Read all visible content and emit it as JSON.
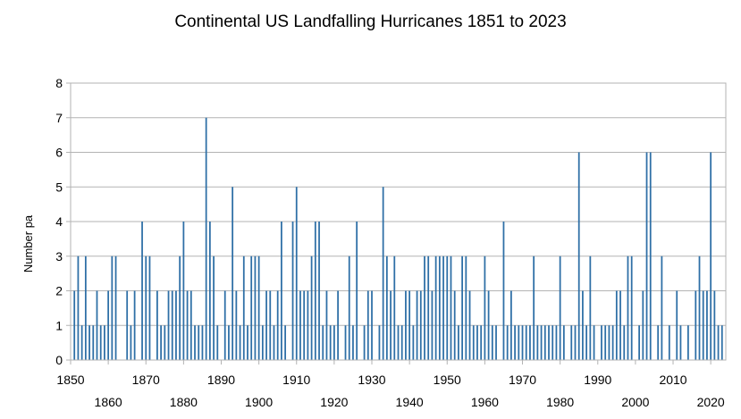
{
  "chart_data": {
    "type": "bar",
    "title": "Continental US Landfalling Hurricanes 1851 to 2023",
    "xlabel": "",
    "ylabel": "Number pa",
    "xlim": [
      1850,
      2024
    ],
    "ylim": [
      0,
      8
    ],
    "y_ticks": [
      "0",
      "1",
      "2",
      "3",
      "4",
      "5",
      "6",
      "7",
      "8"
    ],
    "x_ticks_upper": [
      "1850",
      "1870",
      "1890",
      "1910",
      "1930",
      "1950",
      "1970",
      "1990",
      "2010"
    ],
    "x_ticks_lower": [
      "1860",
      "1880",
      "1900",
      "1920",
      "1940",
      "1960",
      "1980",
      "2000",
      "2020"
    ],
    "grid": true,
    "bar_color": "#2e6fa6",
    "x": [
      1851,
      1852,
      1853,
      1854,
      1855,
      1856,
      1857,
      1858,
      1859,
      1860,
      1861,
      1862,
      1863,
      1864,
      1865,
      1866,
      1867,
      1868,
      1869,
      1870,
      1871,
      1872,
      1873,
      1874,
      1875,
      1876,
      1877,
      1878,
      1879,
      1880,
      1881,
      1882,
      1883,
      1884,
      1885,
      1886,
      1887,
      1888,
      1889,
      1890,
      1891,
      1892,
      1893,
      1894,
      1895,
      1896,
      1897,
      1898,
      1899,
      1900,
      1901,
      1902,
      1903,
      1904,
      1905,
      1906,
      1907,
      1908,
      1909,
      1910,
      1911,
      1912,
      1913,
      1914,
      1915,
      1916,
      1917,
      1918,
      1919,
      1920,
      1921,
      1922,
      1923,
      1924,
      1925,
      1926,
      1927,
      1928,
      1929,
      1930,
      1931,
      1932,
      1933,
      1934,
      1935,
      1936,
      1937,
      1938,
      1939,
      1940,
      1941,
      1942,
      1943,
      1944,
      1945,
      1946,
      1947,
      1948,
      1949,
      1950,
      1951,
      1952,
      1953,
      1954,
      1955,
      1956,
      1957,
      1958,
      1959,
      1960,
      1961,
      1962,
      1963,
      1964,
      1965,
      1966,
      1967,
      1968,
      1969,
      1970,
      1971,
      1972,
      1973,
      1974,
      1975,
      1976,
      1977,
      1978,
      1979,
      1980,
      1981,
      1982,
      1983,
      1984,
      1985,
      1986,
      1987,
      1988,
      1989,
      1990,
      1991,
      1992,
      1993,
      1994,
      1995,
      1996,
      1997,
      1998,
      1999,
      2000,
      2001,
      2002,
      2003,
      2004,
      2005,
      2006,
      2007,
      2008,
      2009,
      2010,
      2011,
      2012,
      2013,
      2014,
      2015,
      2016,
      2017,
      2018,
      2019,
      2020,
      2021,
      2022,
      2023
    ],
    "values": [
      2,
      3,
      1,
      3,
      1,
      1,
      2,
      1,
      1,
      2,
      3,
      3,
      0,
      0,
      2,
      1,
      2,
      0,
      4,
      3,
      3,
      0,
      2,
      1,
      1,
      2,
      2,
      2,
      3,
      4,
      2,
      2,
      1,
      1,
      1,
      7,
      4,
      3,
      1,
      0,
      2,
      1,
      5,
      2,
      1,
      3,
      1,
      3,
      3,
      3,
      1,
      2,
      2,
      1,
      2,
      4,
      1,
      0,
      4,
      5,
      2,
      2,
      2,
      3,
      4,
      4,
      1,
      2,
      1,
      1,
      2,
      0,
      1,
      3,
      1,
      4,
      0,
      1,
      2,
      2,
      0,
      1,
      5,
      3,
      2,
      3,
      1,
      1,
      2,
      2,
      1,
      2,
      2,
      3,
      3,
      2,
      3,
      3,
      3,
      3,
      3,
      2,
      1,
      3,
      3,
      2,
      1,
      1,
      1,
      3,
      2,
      1,
      1,
      0,
      4,
      1,
      2,
      1,
      1,
      1,
      1,
      1,
      3,
      1,
      1,
      1,
      1,
      1,
      1,
      3,
      1,
      0,
      1,
      1,
      6,
      2,
      1,
      3,
      1,
      0,
      1,
      1,
      1,
      1,
      2,
      2,
      1,
      3,
      3,
      0,
      1,
      2,
      6,
      6,
      0,
      1,
      3,
      0,
      1,
      0,
      2,
      1,
      0,
      1,
      0,
      2,
      3,
      2,
      2,
      6,
      2,
      1,
      1
    ]
  }
}
